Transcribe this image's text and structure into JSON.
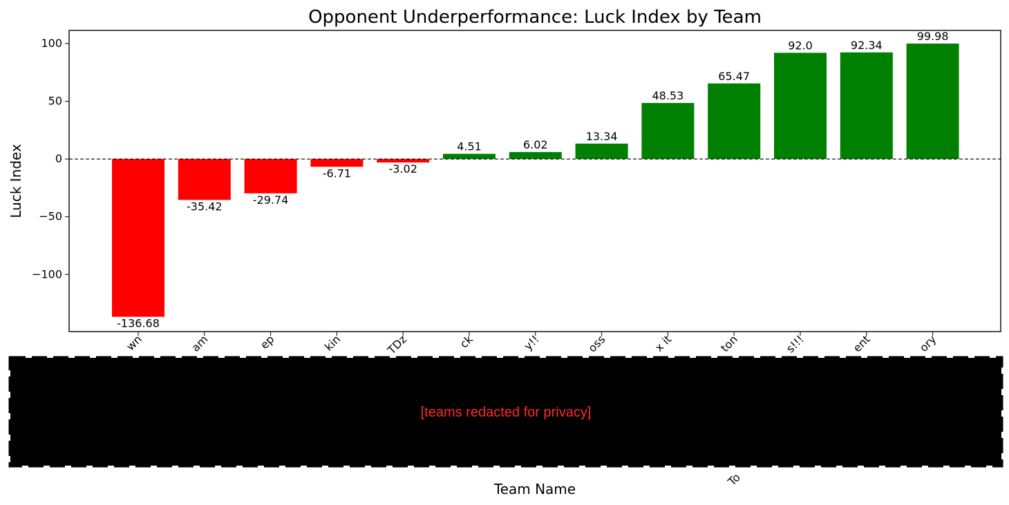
{
  "chart_data": {
    "type": "bar",
    "title": "Opponent Underperformance: Luck Index by Team",
    "xlabel": "Team Name",
    "ylabel": "Luck Index",
    "categories": [
      "wn",
      "am",
      "ep",
      "kin",
      "TDz",
      "ck",
      "y!!",
      "oss",
      "x it",
      "ton",
      "s!!!",
      "ent",
      "ory"
    ],
    "values": [
      -136.68,
      -35.42,
      -29.74,
      -6.71,
      -3.02,
      4.51,
      6.02,
      13.34,
      48.53,
      65.47,
      92.0,
      92.34,
      99.98
    ],
    "value_labels": [
      "-136.68",
      "-35.42",
      "-29.74",
      "-6.71",
      "-3.02",
      "4.51",
      "6.02",
      "13.34",
      "48.53",
      "65.47",
      "92.0",
      "92.34",
      "99.98"
    ],
    "y_ticks": [
      -100,
      -50,
      0,
      50,
      100
    ],
    "y_tick_labels": [
      "−100",
      "−50",
      "0",
      "50",
      "100"
    ],
    "ylim": [
      -149.5,
      111.4
    ],
    "grid": false,
    "reference_line": {
      "y": 0,
      "style": "dashed"
    },
    "colors": {
      "negative": "#ff0000",
      "positive": "#008000"
    }
  },
  "redaction": {
    "text": "[teams redacted for privacy]",
    "fill": "#000000",
    "text_color": "#ff2a2a"
  },
  "fragments": {
    "lower_label": "To"
  }
}
